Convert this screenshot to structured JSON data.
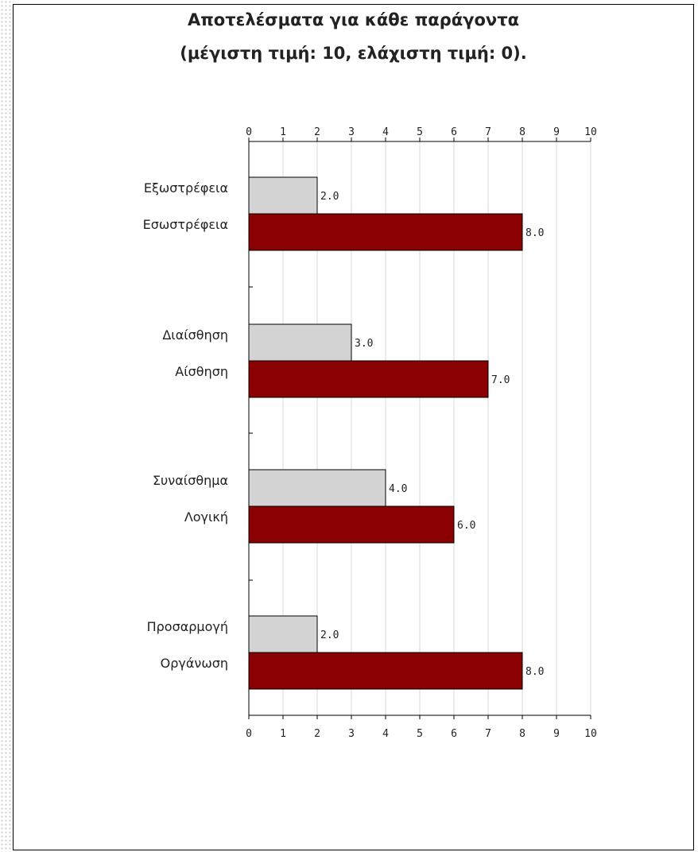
{
  "chart_data": {
    "type": "bar",
    "orientation": "horizontal",
    "title_lines": [
      "Αποτελέσματα για κάθε παράγοντα",
      "(μέγιστη τιμή: 10, ελάχιστη τιμή: 0)."
    ],
    "xlim": [
      0,
      10
    ],
    "ticks": [
      0,
      1,
      2,
      3,
      4,
      5,
      6,
      7,
      8,
      9,
      10
    ],
    "grid": true,
    "colors": {
      "light": "#d3d3d3",
      "dark": "#8b0000"
    },
    "groups": [
      {
        "bars": [
          {
            "label": "Εξωστρέφεια",
            "value": 2.0,
            "value_label": "2.0",
            "color": "light"
          },
          {
            "label": "Εσωστρέφεια",
            "value": 8.0,
            "value_label": "8.0",
            "color": "dark"
          }
        ]
      },
      {
        "bars": [
          {
            "label": "Διαίσθηση",
            "value": 3.0,
            "value_label": "3.0",
            "color": "light"
          },
          {
            "label": "Αίσθηση",
            "value": 7.0,
            "value_label": "7.0",
            "color": "dark"
          }
        ]
      },
      {
        "bars": [
          {
            "label": "Συναίσθημα",
            "value": 4.0,
            "value_label": "4.0",
            "color": "light"
          },
          {
            "label": "Λογική",
            "value": 6.0,
            "value_label": "6.0",
            "color": "dark"
          }
        ]
      },
      {
        "bars": [
          {
            "label": "Προσαρμογή",
            "value": 2.0,
            "value_label": "2.0",
            "color": "light"
          },
          {
            "label": "Οργάνωση",
            "value": 8.0,
            "value_label": "8.0",
            "color": "dark"
          }
        ]
      }
    ]
  }
}
